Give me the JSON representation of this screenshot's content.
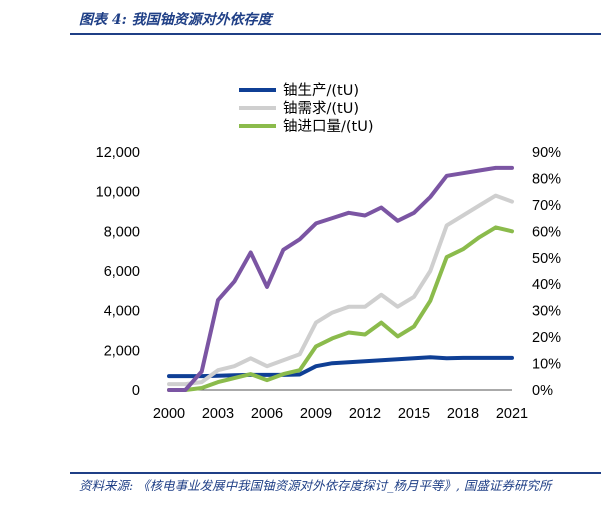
{
  "header": {
    "title": "图表 4: 我国铀资源对外依存度"
  },
  "footer": {
    "source": "资料来源: 《核电事业发展中我国铀资源对外依存度探讨_杨月平等》, 国盛证券研究所"
  },
  "chart_data": {
    "type": "line",
    "x": [
      2000,
      2001,
      2002,
      2003,
      2004,
      2005,
      2006,
      2007,
      2008,
      2009,
      2010,
      2011,
      2012,
      2013,
      2014,
      2015,
      2016,
      2017,
      2018,
      2019,
      2020,
      2021
    ],
    "x_ticks": [
      "2000",
      "2003",
      "2006",
      "2009",
      "2012",
      "2015",
      "2018",
      "2021"
    ],
    "y_left_ticks": [
      "0",
      "2,000",
      "4,000",
      "6,000",
      "8,000",
      "10,000",
      "12,000"
    ],
    "y_right_ticks": [
      "0%",
      "10%",
      "20%",
      "30%",
      "40%",
      "50%",
      "60%",
      "70%",
      "80%",
      "90%"
    ],
    "ylim_left": [
      0,
      12000
    ],
    "ylim_right": [
      0,
      0.9
    ],
    "series": [
      {
        "name": "铀生产/(tU)",
        "axis": "left",
        "color": "#0f3f95",
        "values": [
          700,
          700,
          700,
          720,
          740,
          760,
          760,
          760,
          780,
          1200,
          1350,
          1400,
          1450,
          1500,
          1550,
          1600,
          1650,
          1600,
          1620,
          1620,
          1620,
          1620
        ]
      },
      {
        "name": "铀需求/(tU)",
        "axis": "left",
        "color": "#cfcfcf",
        "values": [
          300,
          300,
          400,
          1000,
          1200,
          1600,
          1200,
          1500,
          1800,
          3400,
          3900,
          4200,
          4200,
          4800,
          4200,
          4700,
          6000,
          8300,
          8800,
          9300,
          9800,
          9500
        ]
      },
      {
        "name": "铀进口量/(tU)",
        "axis": "left",
        "color": "#8bbb4c",
        "values": [
          0,
          0,
          100,
          400,
          600,
          800,
          500,
          800,
          1000,
          2200,
          2600,
          2900,
          2800,
          3400,
          2700,
          3200,
          4500,
          6700,
          7100,
          7700,
          8200,
          8000
        ]
      },
      {
        "name": "",
        "axis": "right",
        "color": "#7b55a3",
        "values": [
          0.0,
          0.0,
          0.07,
          0.34,
          0.41,
          0.52,
          0.39,
          0.53,
          0.57,
          0.63,
          0.65,
          0.67,
          0.66,
          0.69,
          0.64,
          0.67,
          0.73,
          0.81,
          0.82,
          0.83,
          0.84,
          0.84
        ]
      }
    ]
  }
}
